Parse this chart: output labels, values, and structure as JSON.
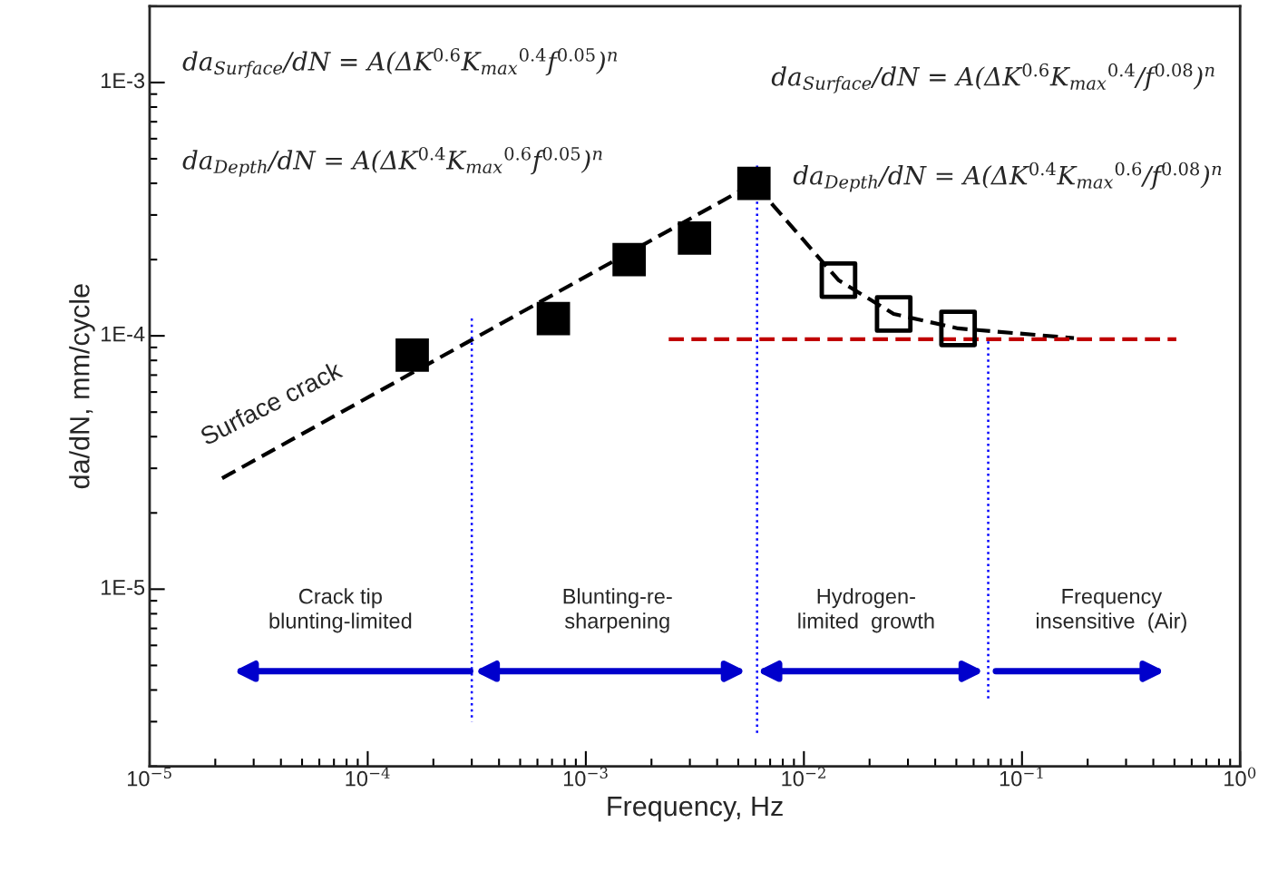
{
  "chart_data": {
    "type": "scatter",
    "xlabel": "Frequency, Hz",
    "ylabel": "da/dN, mm/cycle",
    "log": "xy",
    "grid": false,
    "xlim": [
      1e-05,
      1
    ],
    "ylim": [
      2e-06,
      0.002
    ],
    "xticks": [
      {
        "value": 1e-05,
        "label": "10$^{−5}$"
      },
      {
        "value": 0.0001,
        "label": "10$^{−4}$"
      },
      {
        "value": 0.001,
        "label": "10$^{−3}$"
      },
      {
        "value": 0.01,
        "label": "10$^{−2}$"
      },
      {
        "value": 0.1,
        "label": "10$^{−1}$"
      },
      {
        "value": 1,
        "label": "10$^{0}$"
      }
    ],
    "yticks": [
      {
        "value": 1e-05,
        "label": "1E-5"
      },
      {
        "value": 0.0001,
        "label": "1E-4"
      },
      {
        "value": 0.001,
        "label": "1E-3"
      }
    ],
    "series": [
      {
        "type": "line",
        "color": "#000000",
        "line_style": "dashed",
        "marker": "none",
        "x": [
          2.15e-05,
          0.0059,
          0.0144,
          0.0258,
          0.0509,
          0.173
        ],
        "values": [
          2.74e-05,
          0.0004,
          0.000166,
          0.000122,
          0.000107,
          9.8e-05
        ]
      },
      {
        "type": "line",
        "color": "#c00000",
        "line_style": "dashed",
        "marker": "none",
        "x": [
          0.0024,
          0.51
        ],
        "values": [
          9.7e-05,
          9.7e-05
        ]
      },
      {
        "type": "line",
        "color": "#0000ff",
        "line_style": "dotted",
        "marker": "none",
        "x": [
          0.0003,
          0.0003
        ],
        "values": [
          0.000117,
          3e-06
        ]
      },
      {
        "type": "line",
        "color": "#0000ff",
        "line_style": "dotted",
        "marker": "none",
        "x": [
          0.0061,
          0.0061
        ],
        "values": [
          0.00047,
          2.7e-06
        ]
      },
      {
        "type": "line",
        "color": "#0000ff",
        "line_style": "dotted",
        "marker": "none",
        "x": [
          0.07,
          0.07
        ],
        "values": [
          9.5e-05,
          3.7e-06
        ]
      },
      {
        "color": "#000000",
        "marker": "square",
        "x": [
          0.00016,
          0.00071,
          0.00158,
          0.00315,
          0.0059
        ],
        "values": [
          8.4e-05,
          0.000117,
          0.0002,
          0.000243,
          0.0004
        ]
      },
      {
        "color": "#000000",
        "marker": "square",
        "x": [
          0.0144,
          0.0258,
          0.0509
        ],
        "values": [
          0.000166,
          0.000122,
          0.000107
        ]
      }
    ],
    "annotations": [
      "Crack tip\nblunting-limited",
      "Blunting-re-\nsharpening",
      "Hydrogen-\nlimited  growth",
      "Frequency\ninsensitive  (Air)",
      "da$_{Surface}$/dN = A(ΔK$^{0.6}$K$_{max}$$^{0.4}$f$^{0.05}$)$^{n}$",
      "da$_{Depth}$/dN = A(ΔK$^{0.4}$K$_{max}$$^{0.6}$f$^{0.05}$)$^{n}$",
      "da$_{Surface}$/dN = A(ΔK$^{0.6}$K$_{max}$$^{0.4}$/f$^{0.08}$)$^{n}$",
      "da$_{Depth}$/dN = A(ΔK$^{0.4}$K$_{max}$$^{0.6}$/f$^{0.08}$)$^{n}$",
      "Surface crack"
    ]
  }
}
